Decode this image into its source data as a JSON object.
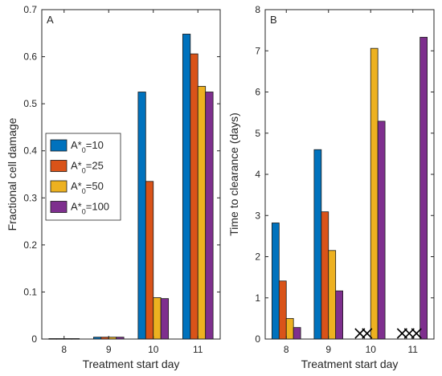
{
  "chart_data": [
    {
      "type": "bar",
      "panel": "A",
      "categories": [
        "8",
        "9",
        "10",
        "11"
      ],
      "xlabel": "Treatment start day",
      "ylabel": "Fractional cell damage",
      "ylim": [
        0,
        0.7
      ],
      "yticks": [
        "0",
        "0.1",
        "0.2",
        "0.3",
        "0.4",
        "0.5",
        "0.6",
        "0.7"
      ],
      "ytick_values": [
        0,
        0.1,
        0.2,
        0.3,
        0.4,
        0.5,
        0.6,
        0.7
      ],
      "series": [
        {
          "name": "A*0=10",
          "label_main": "A*",
          "label_sub": "0",
          "label_tail": "=10",
          "color": "#0072BD",
          "values": [
            0.001,
            0.004,
            0.525,
            0.648
          ]
        },
        {
          "name": "A*0=25",
          "label_main": "A*",
          "label_sub": "0",
          "label_tail": "=25",
          "color": "#D95319",
          "values": [
            0.001,
            0.004,
            0.335,
            0.606
          ]
        },
        {
          "name": "A*0=50",
          "label_main": "A*",
          "label_sub": "0",
          "label_tail": "=50",
          "color": "#EDB120",
          "values": [
            0.001,
            0.004,
            0.088,
            0.537
          ]
        },
        {
          "name": "A*0=100",
          "label_main": "A*",
          "label_sub": "0",
          "label_tail": "=100",
          "color": "#7E2F8E",
          "values": [
            0.001,
            0.004,
            0.086,
            0.525
          ]
        }
      ],
      "legend_position": "left-middle"
    },
    {
      "type": "bar",
      "panel": "B",
      "categories": [
        "8",
        "9",
        "10",
        "11"
      ],
      "xlabel": "Treatment start day",
      "ylabel": "Time to clearance (days)",
      "ylim": [
        0,
        8
      ],
      "yticks": [
        "0",
        "1",
        "2",
        "3",
        "4",
        "5",
        "6",
        "7",
        "8"
      ],
      "ytick_values": [
        0,
        1,
        2,
        3,
        4,
        5,
        6,
        7,
        8
      ],
      "series": [
        {
          "name": "A*0=10",
          "color": "#0072BD",
          "values": [
            2.82,
            4.6,
            null,
            null
          ]
        },
        {
          "name": "A*0=25",
          "color": "#D95319",
          "values": [
            1.41,
            3.09,
            null,
            null
          ]
        },
        {
          "name": "A*0=50",
          "color": "#EDB120",
          "values": [
            0.5,
            2.15,
            7.06,
            null
          ]
        },
        {
          "name": "A*0=100",
          "color": "#7E2F8E",
          "values": [
            0.28,
            1.17,
            5.29,
            7.33
          ]
        }
      ],
      "no_clearance_marker": "X"
    }
  ]
}
